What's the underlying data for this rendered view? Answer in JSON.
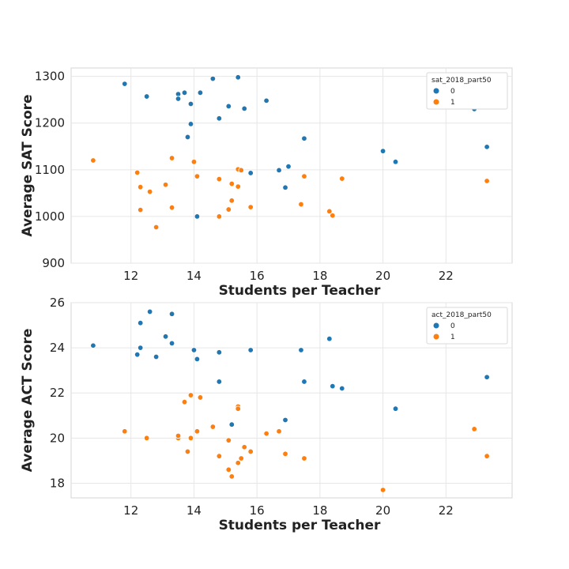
{
  "colors": {
    "series0": "#1f77b4",
    "series1": "#ff7f0e"
  },
  "chart_data": [
    {
      "type": "scatter",
      "xlabel": "Students per Teacher",
      "ylabel": "Average SAT Score",
      "xlim": [
        10.1,
        24.1
      ],
      "ylim": [
        900,
        1318
      ],
      "xticks": [
        12,
        14,
        16,
        18,
        20,
        22
      ],
      "yticks": [
        900,
        1000,
        1100,
        1200,
        1300
      ],
      "grid": true,
      "legend": {
        "title": "sat_2018_part50",
        "location": "top-right",
        "labels": [
          "0",
          "1"
        ]
      },
      "series": [
        {
          "name": "0",
          "points": [
            [
              11.8,
              1284
            ],
            [
              12.5,
              1257
            ],
            [
              13.5,
              1262
            ],
            [
              13.5,
              1252
            ],
            [
              13.7,
              1265
            ],
            [
              14.2,
              1265
            ],
            [
              14.6,
              1295
            ],
            [
              15.4,
              1298
            ],
            [
              15.1,
              1236
            ],
            [
              15.6,
              1231
            ],
            [
              16.3,
              1248
            ],
            [
              13.9,
              1241
            ],
            [
              13.9,
              1198
            ],
            [
              13.8,
              1170
            ],
            [
              14.8,
              1210
            ],
            [
              17.5,
              1167
            ],
            [
              14.1,
              1000
            ],
            [
              15.8,
              1093
            ],
            [
              16.7,
              1099
            ],
            [
              17.0,
              1107
            ],
            [
              16.9,
              1062
            ],
            [
              20.0,
              1140
            ],
            [
              20.4,
              1117
            ],
            [
              22.9,
              1230
            ],
            [
              23.3,
              1149
            ]
          ]
        },
        {
          "name": "1",
          "points": [
            [
              10.8,
              1120
            ],
            [
              12.2,
              1094
            ],
            [
              12.3,
              1063
            ],
            [
              12.3,
              1014
            ],
            [
              12.6,
              1053
            ],
            [
              12.8,
              977
            ],
            [
              13.1,
              1068
            ],
            [
              13.3,
              1125
            ],
            [
              13.3,
              1019
            ],
            [
              14.0,
              1117
            ],
            [
              14.1,
              1086
            ],
            [
              14.8,
              1080
            ],
            [
              14.8,
              1000
            ],
            [
              15.1,
              1015
            ],
            [
              15.2,
              1034
            ],
            [
              15.2,
              1070
            ],
            [
              15.4,
              1101
            ],
            [
              15.5,
              1099
            ],
            [
              15.4,
              1064
            ],
            [
              15.8,
              1020
            ],
            [
              17.4,
              1026
            ],
            [
              17.5,
              1086
            ],
            [
              18.3,
              1011
            ],
            [
              18.4,
              1002
            ],
            [
              18.7,
              1081
            ],
            [
              23.3,
              1076
            ]
          ]
        }
      ]
    },
    {
      "type": "scatter",
      "xlabel": "Students per Teacher",
      "ylabel": "Average ACT Score",
      "xlim": [
        10.1,
        24.1
      ],
      "ylim": [
        17.35,
        26.0
      ],
      "xticks": [
        12,
        14,
        16,
        18,
        20,
        22
      ],
      "yticks": [
        18,
        20,
        22,
        24,
        26
      ],
      "grid": true,
      "legend": {
        "title": "act_2018_part50",
        "location": "top-right",
        "labels": [
          "0",
          "1"
        ]
      },
      "series": [
        {
          "name": "0",
          "points": [
            [
              10.8,
              24.1
            ],
            [
              12.2,
              23.7
            ],
            [
              12.3,
              24.0
            ],
            [
              12.3,
              25.1
            ],
            [
              12.6,
              25.6
            ],
            [
              12.8,
              23.6
            ],
            [
              13.1,
              24.5
            ],
            [
              13.3,
              24.2
            ],
            [
              13.3,
              25.5
            ],
            [
              14.0,
              23.9
            ],
            [
              14.1,
              23.5
            ],
            [
              14.8,
              23.8
            ],
            [
              14.8,
              22.5
            ],
            [
              15.2,
              20.6
            ],
            [
              15.8,
              23.9
            ],
            [
              16.9,
              20.8
            ],
            [
              17.4,
              23.9
            ],
            [
              17.5,
              22.5
            ],
            [
              18.3,
              24.4
            ],
            [
              18.4,
              22.3
            ],
            [
              18.7,
              22.2
            ],
            [
              20.4,
              21.3
            ],
            [
              23.3,
              22.7
            ]
          ]
        },
        {
          "name": "1",
          "points": [
            [
              11.8,
              20.3
            ],
            [
              12.5,
              20.0
            ],
            [
              13.5,
              20.0
            ],
            [
              13.5,
              20.1
            ],
            [
              13.7,
              21.6
            ],
            [
              13.8,
              19.4
            ],
            [
              13.9,
              20.0
            ],
            [
              13.9,
              21.9
            ],
            [
              14.1,
              20.3
            ],
            [
              14.2,
              21.8
            ],
            [
              14.6,
              20.5
            ],
            [
              14.8,
              19.2
            ],
            [
              15.1,
              19.9
            ],
            [
              15.1,
              18.6
            ],
            [
              15.2,
              18.3
            ],
            [
              15.4,
              21.4
            ],
            [
              15.4,
              21.3
            ],
            [
              15.4,
              18.9
            ],
            [
              15.5,
              19.1
            ],
            [
              15.6,
              19.6
            ],
            [
              15.8,
              19.4
            ],
            [
              16.3,
              20.2
            ],
            [
              16.7,
              20.3
            ],
            [
              16.9,
              19.3
            ],
            [
              17.5,
              19.1
            ],
            [
              20.0,
              17.7
            ],
            [
              22.9,
              20.4
            ],
            [
              23.3,
              19.2
            ]
          ]
        }
      ]
    }
  ]
}
